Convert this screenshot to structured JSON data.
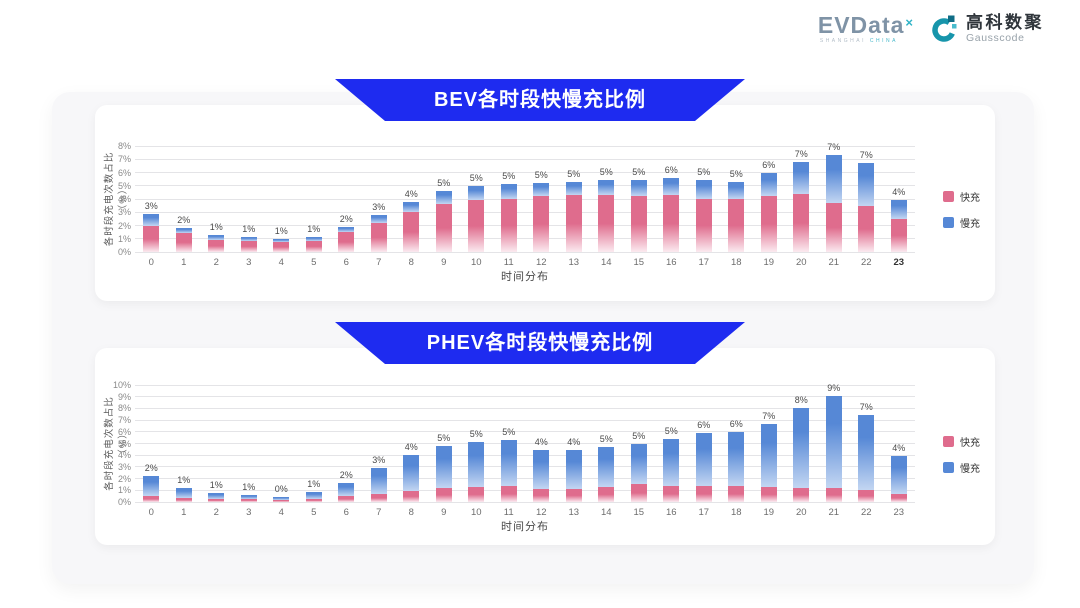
{
  "header": {
    "evdata_logo": {
      "text": "EVData",
      "sup": "×",
      "subtext_left": "SHANGHAI",
      "subtext_right": "CHINA"
    },
    "gausscode_logo": {
      "cn": "高科数聚",
      "en": "Gausscode"
    }
  },
  "colors": {
    "banner_blue": "#1e2bf0",
    "fast_pink": "#df6c8d",
    "slow_blue": "#5688d6",
    "panel_gray": "#f7f7f9",
    "gridline": "#e4e4e7",
    "logo_teal": "#2fb3c7"
  },
  "chart_data": [
    {
      "type": "bar",
      "stacked": true,
      "title": "BEV各时段快慢充比例",
      "xlabel": "时间分布",
      "ylabel": "各时段充电次数占比（%）",
      "ylim": [
        0,
        8
      ],
      "ytick_step": 1,
      "ytick_suffix": "%",
      "grid": true,
      "legend_position": "right",
      "xtick_bold": "23",
      "categories": [
        "0",
        "1",
        "2",
        "3",
        "4",
        "5",
        "6",
        "7",
        "8",
        "9",
        "10",
        "11",
        "12",
        "13",
        "14",
        "15",
        "16",
        "17",
        "18",
        "19",
        "20",
        "21",
        "22",
        "23"
      ],
      "series": [
        {
          "name": "快充",
          "color": "#df6c8d",
          "color_fade": "#fbeaf0",
          "values": [
            2.0,
            1.4,
            0.9,
            0.8,
            0.75,
            0.85,
            1.5,
            2.2,
            3.0,
            3.6,
            3.9,
            4.0,
            4.2,
            4.3,
            4.3,
            4.2,
            4.3,
            4.0,
            4.0,
            4.2,
            4.4,
            3.7,
            3.5,
            2.5
          ]
        },
        {
          "name": "慢充",
          "color": "#5688d6",
          "color_fade": "#c3d6f2",
          "values": [
            0.9,
            0.4,
            0.4,
            0.3,
            0.2,
            0.3,
            0.4,
            0.6,
            0.8,
            1.0,
            1.1,
            1.1,
            1.0,
            1.0,
            1.1,
            1.2,
            1.3,
            1.4,
            1.3,
            1.8,
            2.4,
            3.6,
            3.2,
            1.4
          ]
        }
      ],
      "total_labels": [
        "3%",
        "2%",
        "1%",
        "1%",
        "1%",
        "1%",
        "2%",
        "3%",
        "4%",
        "5%",
        "5%",
        "5%",
        "5%",
        "5%",
        "5%",
        "5%",
        "6%",
        "5%",
        "5%",
        "6%",
        "7%",
        "7%",
        "7%",
        "4%"
      ]
    },
    {
      "type": "bar",
      "stacked": true,
      "title": "PHEV各时段快慢充比例",
      "xlabel": "时间分布",
      "ylabel": "各时段充电次数占比（%）",
      "ylim": [
        0,
        10
      ],
      "ytick_step": 1,
      "ytick_suffix": "%",
      "grid": true,
      "legend_position": "right",
      "xtick_bold": "",
      "categories": [
        "0",
        "1",
        "2",
        "3",
        "4",
        "5",
        "6",
        "7",
        "8",
        "9",
        "10",
        "11",
        "12",
        "13",
        "14",
        "15",
        "16",
        "17",
        "18",
        "19",
        "20",
        "21",
        "22",
        "23"
      ],
      "series": [
        {
          "name": "快充",
          "color": "#df6c8d",
          "color_fade": "#fbeaf0",
          "values": [
            0.5,
            0.35,
            0.3,
            0.25,
            0.2,
            0.3,
            0.5,
            0.7,
            0.9,
            1.2,
            1.3,
            1.4,
            1.15,
            1.15,
            1.3,
            1.5,
            1.4,
            1.4,
            1.4,
            1.3,
            1.2,
            1.2,
            1.0,
            0.7
          ]
        },
        {
          "name": "慢充",
          "color": "#5688d6",
          "color_fade": "#c3d6f2",
          "values": [
            1.7,
            0.85,
            0.5,
            0.35,
            0.25,
            0.55,
            1.1,
            2.2,
            3.1,
            3.6,
            3.8,
            3.9,
            3.3,
            3.3,
            3.4,
            3.5,
            4.0,
            4.5,
            4.6,
            5.4,
            6.8,
            7.9,
            6.4,
            3.2
          ]
        }
      ],
      "total_labels": [
        "2%",
        "1%",
        "1%",
        "1%",
        "0%",
        "1%",
        "2%",
        "3%",
        "4%",
        "5%",
        "5%",
        "5%",
        "4%",
        "4%",
        "5%",
        "5%",
        "5%",
        "6%",
        "6%",
        "7%",
        "8%",
        "9%",
        "7%",
        "4%"
      ]
    }
  ]
}
